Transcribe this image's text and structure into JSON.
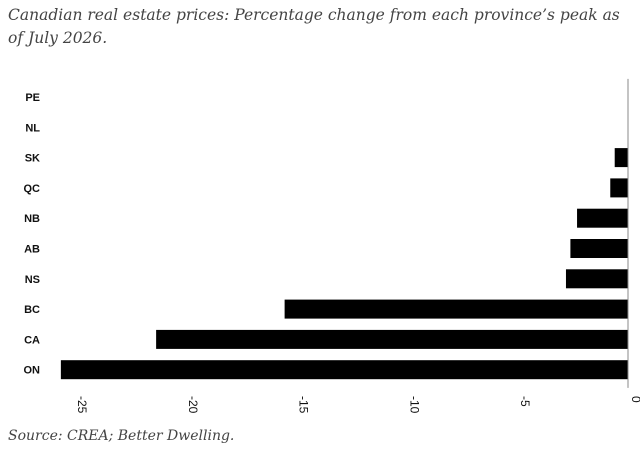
{
  "chart_data": {
    "type": "bar",
    "orientation": "horizontal",
    "title": "Canadian real estate prices: Percentage change from each province’s peak as of July 2026.",
    "source": "Source: CREA; Better Dwelling.",
    "categories": [
      "PE",
      "NL",
      "SK",
      "QC",
      "NB",
      "AB",
      "NS",
      "BC",
      "CA",
      "ON"
    ],
    "values": [
      0,
      0,
      -0.6,
      -0.8,
      -2.3,
      -2.6,
      -2.8,
      -15.5,
      -21.3,
      -25.6
    ],
    "xlim": [
      -26,
      0
    ],
    "xticks": [
      -25,
      -20,
      -15,
      -10,
      -5,
      0
    ],
    "xticklabels": [
      "-25",
      "-20",
      "-15",
      "-10",
      "-5",
      "0"
    ],
    "grid": false,
    "bar_color": "#000000"
  }
}
